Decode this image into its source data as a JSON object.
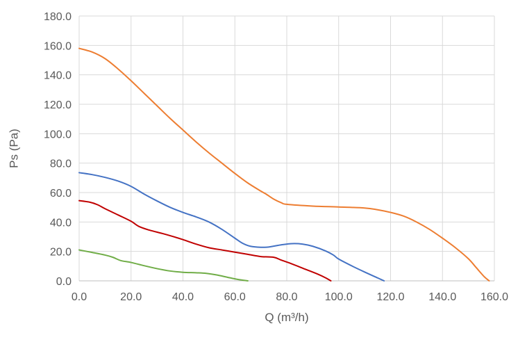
{
  "chart_data": {
    "type": "line",
    "xlabel": "Q (m³/h)",
    "ylabel": "Ps (Pa)",
    "xlim": [
      0,
      160
    ],
    "ylim": [
      0,
      180
    ],
    "x_ticks": [
      "0.0",
      "20.0",
      "40.0",
      "60.0",
      "80.0",
      "100.0",
      "120.0",
      "140.0",
      "160.0"
    ],
    "y_ticks": [
      "0.0",
      "20.0",
      "40.0",
      "60.0",
      "80.0",
      "100.0",
      "120.0",
      "140.0",
      "160.0",
      "180.0"
    ],
    "grid": true,
    "legend": "none",
    "series": [
      {
        "color": "#ED7D31",
        "points": [
          [
            0,
            158
          ],
          [
            5,
            155.5
          ],
          [
            10,
            151
          ],
          [
            15,
            144
          ],
          [
            20,
            136
          ],
          [
            25,
            127.5
          ],
          [
            30,
            119
          ],
          [
            35,
            110.5
          ],
          [
            40,
            102.5
          ],
          [
            45,
            94.5
          ],
          [
            50,
            87
          ],
          [
            55,
            80
          ],
          [
            60,
            73
          ],
          [
            65,
            66.5
          ],
          [
            70,
            61
          ],
          [
            72,
            59
          ],
          [
            75,
            55.5
          ],
          [
            78,
            53
          ],
          [
            80,
            52
          ],
          [
            90,
            50.8
          ],
          [
            100,
            50.2
          ],
          [
            110,
            49.5
          ],
          [
            115,
            48.3
          ],
          [
            120,
            46.5
          ],
          [
            125,
            44
          ],
          [
            130,
            40
          ],
          [
            135,
            35
          ],
          [
            140,
            29
          ],
          [
            145,
            22.5
          ],
          [
            150,
            15
          ],
          [
            153,
            9
          ],
          [
            156,
            3
          ],
          [
            158,
            0
          ]
        ]
      },
      {
        "color": "#4472C4",
        "points": [
          [
            0,
            73.5
          ],
          [
            5,
            72.2
          ],
          [
            10,
            70.3
          ],
          [
            15,
            67.8
          ],
          [
            20,
            64.2
          ],
          [
            25,
            59
          ],
          [
            30,
            54.3
          ],
          [
            35,
            50
          ],
          [
            40,
            46.5
          ],
          [
            45,
            43.5
          ],
          [
            50,
            40
          ],
          [
            55,
            35
          ],
          [
            60,
            29
          ],
          [
            63,
            25.5
          ],
          [
            66,
            23.5
          ],
          [
            70,
            22.8
          ],
          [
            73,
            23
          ],
          [
            78,
            24.5
          ],
          [
            82,
            25.3
          ],
          [
            86,
            25
          ],
          [
            90,
            23.5
          ],
          [
            95,
            20.3
          ],
          [
            98,
            17.5
          ],
          [
            100,
            14.8
          ],
          [
            105,
            10.2
          ],
          [
            110,
            6
          ],
          [
            115,
            2
          ],
          [
            117.5,
            0
          ]
        ]
      },
      {
        "color": "#C00000",
        "points": [
          [
            0,
            54.5
          ],
          [
            4,
            53.5
          ],
          [
            7,
            51.8
          ],
          [
            10,
            49
          ],
          [
            15,
            44.8
          ],
          [
            20,
            40.5
          ],
          [
            23,
            37
          ],
          [
            27,
            34.5
          ],
          [
            32,
            32.2
          ],
          [
            36,
            30.2
          ],
          [
            40,
            28
          ],
          [
            45,
            25
          ],
          [
            50,
            22.5
          ],
          [
            55,
            21
          ],
          [
            60,
            19.5
          ],
          [
            65,
            18
          ],
          [
            70,
            16.5
          ],
          [
            75,
            16
          ],
          [
            78,
            14
          ],
          [
            82,
            11.5
          ],
          [
            87,
            8
          ],
          [
            92,
            4.5
          ],
          [
            95,
            2
          ],
          [
            97,
            0
          ]
        ]
      },
      {
        "color": "#70AD47",
        "points": [
          [
            0,
            21
          ],
          [
            5,
            19.3
          ],
          [
            10,
            17.5
          ],
          [
            13,
            16
          ],
          [
            16,
            13.8
          ],
          [
            20,
            12.5
          ],
          [
            25,
            10.3
          ],
          [
            30,
            8.3
          ],
          [
            35,
            6.7
          ],
          [
            40,
            5.8
          ],
          [
            45,
            5.5
          ],
          [
            49,
            5.1
          ],
          [
            53,
            4
          ],
          [
            57,
            2.5
          ],
          [
            61,
            1
          ],
          [
            65,
            0
          ]
        ]
      }
    ]
  }
}
